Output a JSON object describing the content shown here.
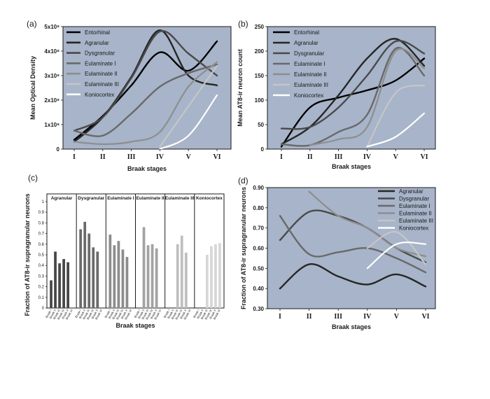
{
  "chart_data": [
    {
      "panel_label": "(a)",
      "type": "line",
      "xlabel": "Braak stages",
      "ylabel": "Mean Optical Density",
      "categories": [
        "I",
        "II",
        "III",
        "IV",
        "V",
        "VI"
      ],
      "ylim": [
        0,
        500000000
      ],
      "yticks": [
        {
          "value": 0,
          "label": "0"
        },
        {
          "value": 100000000,
          "label": "1x10⁸"
        },
        {
          "value": 200000000,
          "label": "2x10⁸"
        },
        {
          "value": 300000000,
          "label": "3x10⁸"
        },
        {
          "value": 400000000,
          "label": "4x10⁸"
        },
        {
          "value": 500000000,
          "label": "5x10⁸"
        }
      ],
      "legend_position": "top-left",
      "series": [
        {
          "name": "Entorhinal",
          "color": "#000000",
          "width": 2.4,
          "values": [
            38000000,
            135000000,
            260000000,
            395000000,
            320000000,
            440000000
          ]
        },
        {
          "name": "Agranular",
          "color": "#262626",
          "width": 2.4,
          "values": [
            30000000,
            130000000,
            295000000,
            485000000,
            300000000,
            260000000
          ]
        },
        {
          "name": "Dysgranular",
          "color": "#4a4a4a",
          "width": 2.4,
          "values": [
            75000000,
            130000000,
            290000000,
            480000000,
            390000000,
            300000000
          ]
        },
        {
          "name": "Eulaminate I",
          "color": "#696969",
          "width": 2.4,
          "values": [
            75000000,
            55000000,
            145000000,
            255000000,
            310000000,
            345000000
          ]
        },
        {
          "name": "Eulaminate II",
          "color": "#8e8e8e",
          "width": 2.2,
          "values": [
            30000000,
            20000000,
            30000000,
            70000000,
            255000000,
            355000000
          ]
        },
        {
          "name": "Eulaminate III",
          "color": "#c6c6c6",
          "width": 2.2,
          "values": [
            null,
            null,
            null,
            10000000,
            175000000,
            340000000
          ]
        },
        {
          "name": "Koniocortex",
          "color": "#ffffff",
          "width": 2.2,
          "values": [
            null,
            null,
            null,
            0,
            55000000,
            220000000
          ]
        }
      ]
    },
    {
      "panel_label": "(b)",
      "type": "line",
      "xlabel": "Braak stages",
      "ylabel": "Mean AT8-ir neuron count",
      "categories": [
        "I",
        "II",
        "III",
        "IV",
        "V",
        "VI"
      ],
      "ylim": [
        0,
        250
      ],
      "yticks": [
        {
          "value": 0,
          "label": "0"
        },
        {
          "value": 50,
          "label": "50"
        },
        {
          "value": 100,
          "label": "100"
        },
        {
          "value": 150,
          "label": "150"
        },
        {
          "value": 200,
          "label": "200"
        },
        {
          "value": 250,
          "label": "250"
        }
      ],
      "legend_position": "top-left",
      "series": [
        {
          "name": "Entorhinal",
          "color": "#000000",
          "width": 2.4,
          "values": [
            5,
            85,
            105,
            120,
            140,
            185
          ]
        },
        {
          "name": "Agranular",
          "color": "#262626",
          "width": 2.4,
          "values": [
            10,
            45,
            110,
            185,
            225,
            170
          ]
        },
        {
          "name": "Dysgranular",
          "color": "#4a4a4a",
          "width": 2.4,
          "values": [
            42,
            45,
            85,
            150,
            220,
            195
          ]
        },
        {
          "name": "Eulaminate I",
          "color": "#696969",
          "width": 2.4,
          "values": [
            10,
            8,
            35,
            70,
            205,
            150
          ]
        },
        {
          "name": "Eulaminate II",
          "color": "#8e8e8e",
          "width": 2.2,
          "values": [
            null,
            8,
            20,
            45,
            200,
            165
          ]
        },
        {
          "name": "Eulaminate III",
          "color": "#c6c6c6",
          "width": 2.2,
          "values": [
            null,
            null,
            null,
            5,
            115,
            130
          ]
        },
        {
          "name": "Koniocortex",
          "color": "#ffffff",
          "width": 2.2,
          "values": [
            null,
            null,
            null,
            5,
            25,
            73
          ]
        }
      ]
    },
    {
      "panel_label": "(c)",
      "type": "bar",
      "xlabel": "Braak stages",
      "ylabel": "Fraction of AT8-ir supragranular neurons",
      "ylim": [
        0,
        1
      ],
      "yticks": [
        "0",
        "0.1",
        "0.2",
        "0.3",
        "0.4",
        "0.5",
        "0.6",
        "0.7",
        "0.8",
        "0.9",
        "1"
      ],
      "groups": [
        {
          "name": "Agranular",
          "color": "#474747",
          "categories": [
            "Braak I",
            "Braak II",
            "Braak III",
            "Braak IV",
            "Braak V",
            "Braak VI"
          ],
          "values": [
            0.26,
            0.53,
            0.42,
            0.46,
            0.43,
            null
          ]
        },
        {
          "name": "Dysgranular",
          "color": "#6a6a6a",
          "categories": [
            "Braak I",
            "Braak II",
            "Braak III",
            "Braak IV",
            "Braak V",
            "Braak VI"
          ],
          "values": [
            0.74,
            0.81,
            0.7,
            0.57,
            0.53,
            null
          ]
        },
        {
          "name": "Eulaminate I",
          "color": "#8c8c8c",
          "categories": [
            "Braak I",
            "Braak II",
            "Braak III",
            "Braak IV",
            "Braak V",
            "Braak VI"
          ],
          "values": [
            0.69,
            0.59,
            0.63,
            0.55,
            0.48,
            null
          ]
        },
        {
          "name": "Eulaminate II",
          "color": "#a2a2a2",
          "categories": [
            "Braak I",
            "Braak II",
            "Braak III",
            "Braak IV",
            "Braak V",
            "Braak VI"
          ],
          "values": [
            null,
            0.76,
            0.59,
            0.6,
            0.56,
            null
          ]
        },
        {
          "name": "Eulaminate III",
          "color": "#bfbfbf",
          "categories": [
            "Braak I",
            "Braak II",
            "Braak III",
            "Braak IV",
            "Braak V",
            "Braak VI"
          ],
          "values": [
            null,
            null,
            0.6,
            0.68,
            0.52,
            null
          ]
        },
        {
          "name": "Koniocortex",
          "color": "#d6d6d6",
          "categories": [
            "Braak I",
            "Braak II",
            "Braak III",
            "Braak IV",
            "Braak V",
            "Braak VI"
          ],
          "values": [
            null,
            null,
            0.5,
            0.58,
            0.6,
            0.61
          ]
        }
      ]
    },
    {
      "panel_label": "(d)",
      "type": "line",
      "xlabel": "Braak stages",
      "ylabel": "Fraction of AT8-ir supragranular neurons",
      "categories": [
        "I",
        "II",
        "III",
        "IV",
        "V",
        "VI"
      ],
      "ylim": [
        0.3,
        0.9
      ],
      "yticks": [
        {
          "value": 0.3,
          "label": "0.30"
        },
        {
          "value": 0.4,
          "label": "0.40"
        },
        {
          "value": 0.5,
          "label": "0.50"
        },
        {
          "value": 0.6,
          "label": "0.60"
        },
        {
          "value": 0.7,
          "label": "0.70"
        },
        {
          "value": 0.8,
          "label": "0.80"
        },
        {
          "value": 0.9,
          "label": "0.90"
        }
      ],
      "legend_position": "top-right",
      "series": [
        {
          "name": "Agranular",
          "color": "#262626",
          "width": 2.4,
          "values": [
            0.4,
            0.52,
            0.46,
            0.42,
            0.47,
            0.41
          ]
        },
        {
          "name": "Dysgranular",
          "color": "#4a4a4a",
          "width": 2.4,
          "values": [
            0.64,
            0.78,
            0.76,
            0.7,
            0.6,
            0.53
          ]
        },
        {
          "name": "Eulaminate I",
          "color": "#696969",
          "width": 2.4,
          "values": [
            0.76,
            0.57,
            0.58,
            0.6,
            0.55,
            0.48
          ]
        },
        {
          "name": "Eulaminate II",
          "color": "#8e8e8e",
          "width": 2.2,
          "values": [
            null,
            0.88,
            0.76,
            0.7,
            0.6,
            0.56
          ]
        },
        {
          "name": "Eulaminate III",
          "color": "#c6c6c6",
          "width": 2.2,
          "values": [
            null,
            null,
            null,
            0.6,
            0.68,
            0.52
          ]
        },
        {
          "name": "Koniocortex",
          "color": "#ffffff",
          "width": 2.2,
          "values": [
            null,
            null,
            null,
            0.5,
            0.62,
            0.62
          ]
        }
      ]
    }
  ]
}
